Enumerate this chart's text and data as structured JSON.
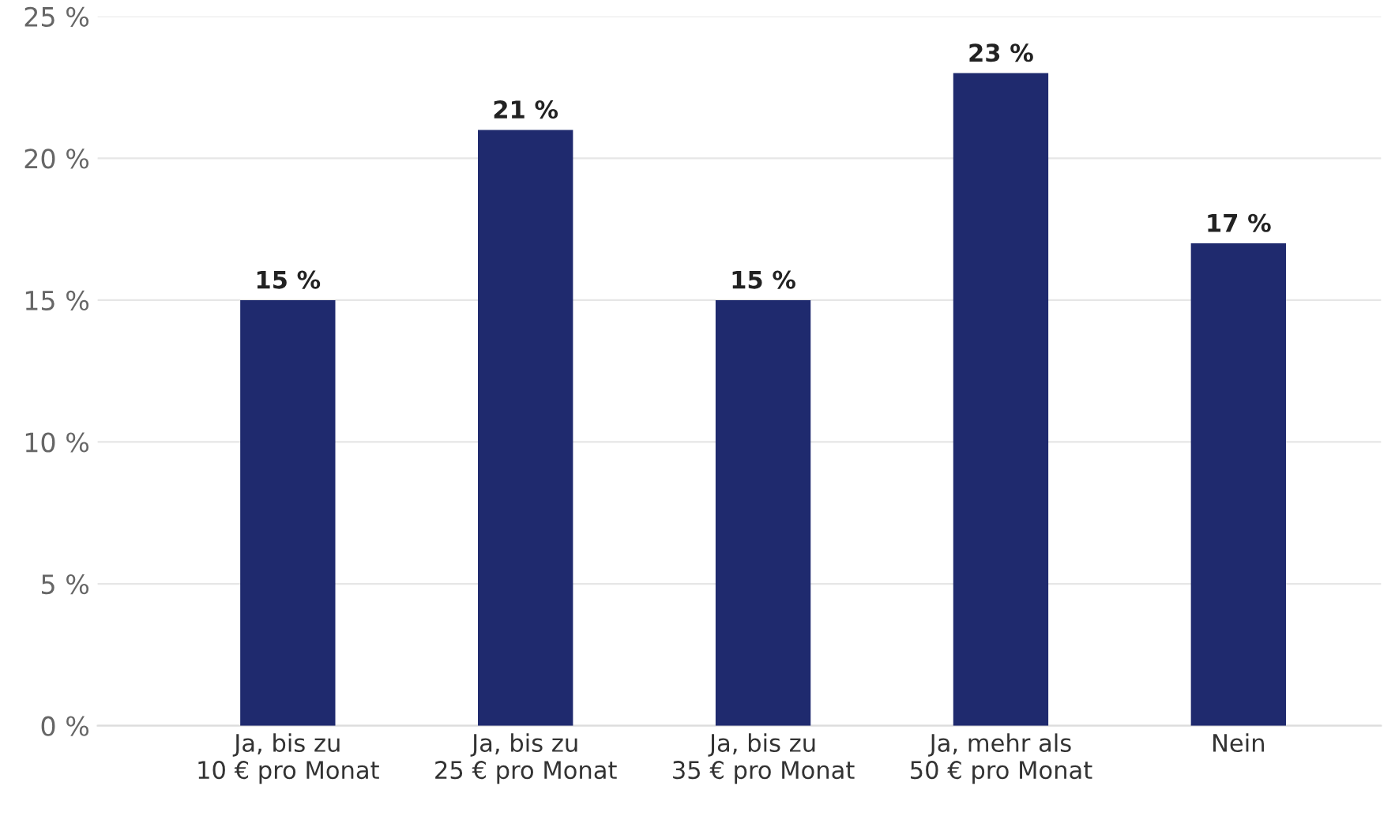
{
  "chart_data": {
    "type": "bar",
    "categories": [
      "Ja, bis zu\n10 € pro Monat",
      "Ja, bis zu\n25 € pro Monat",
      "Ja, bis zu\n35 € pro Monat",
      "Ja, mehr als\n50 € pro Monat",
      "Nein"
    ],
    "values": [
      15,
      21,
      15,
      23,
      17
    ],
    "value_labels": [
      "15 %",
      "21 %",
      "15 %",
      "23 %",
      "17 %"
    ],
    "color": "#1f2a6e",
    "ylim": [
      0,
      25
    ],
    "yticks": [
      {
        "value": 0,
        "label": "0 %"
      },
      {
        "value": 5,
        "label": "5 %"
      },
      {
        "value": 10,
        "label": "10 %"
      },
      {
        "value": 15,
        "label": "15 %"
      },
      {
        "value": 20,
        "label": "20 %"
      },
      {
        "value": 25,
        "label": "25 %"
      }
    ],
    "grid": "y"
  }
}
